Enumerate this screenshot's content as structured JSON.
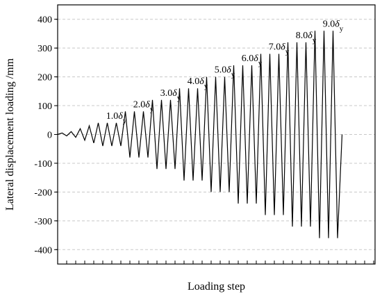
{
  "chart_data": {
    "type": "line",
    "xlabel": "Loading step",
    "ylabel": "Lateral displacement loading /mm",
    "ylim": [
      -450,
      450
    ],
    "yticks": [
      -400,
      -300,
      -200,
      -100,
      0,
      100,
      200,
      300,
      400
    ],
    "grid": "horizontal dashed",
    "x_tick_labels": "none",
    "series": [
      {
        "values": [
          0,
          5,
          -5,
          10,
          -10,
          20,
          -20,
          30,
          -30,
          40,
          -40,
          40,
          -40,
          40,
          -40,
          80,
          -80,
          80,
          -80,
          80,
          -80,
          120,
          -120,
          120,
          -120,
          120,
          -120,
          160,
          -160,
          160,
          -160,
          160,
          -160,
          200,
          -200,
          200,
          -200,
          200,
          -200,
          240,
          -240,
          240,
          -240,
          240,
          -240,
          280,
          -280,
          280,
          -280,
          280,
          -280,
          320,
          -320,
          320,
          -320,
          320,
          -320,
          360,
          -360,
          360,
          -360,
          360,
          -360,
          0
        ]
      }
    ],
    "annotations": [
      {
        "prefix": "1.0",
        "symbol": "δ",
        "sub": "y",
        "at_step": 13
      },
      {
        "prefix": "2.0",
        "symbol": "δ",
        "sub": "y",
        "at_step": 19
      },
      {
        "prefix": "3.0",
        "symbol": "δ",
        "sub": "y",
        "at_step": 25
      },
      {
        "prefix": "4.0",
        "symbol": "δ",
        "sub": "y",
        "at_step": 31
      },
      {
        "prefix": "5.0",
        "symbol": "δ",
        "sub": "y",
        "at_step": 37
      },
      {
        "prefix": "6.0",
        "symbol": "δ",
        "sub": "y",
        "at_step": 43
      },
      {
        "prefix": "7.0",
        "symbol": "δ",
        "sub": "y",
        "at_step": 49
      },
      {
        "prefix": "8.0",
        "symbol": "δ",
        "sub": "y",
        "at_step": 55
      },
      {
        "prefix": "9.0",
        "symbol": "δ",
        "sub": "y",
        "at_step": 61
      }
    ],
    "line_color": "#000000",
    "grid_color": "#c8c8c8"
  }
}
